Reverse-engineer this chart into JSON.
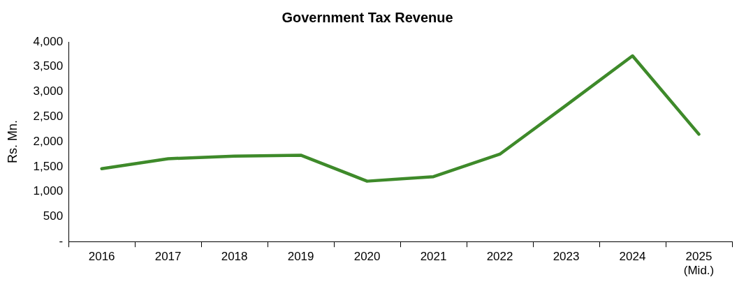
{
  "chart_data": {
    "type": "line",
    "title": "Government Tax Revenue",
    "ylabel": "Rs. Mn.",
    "categories": [
      "2016",
      "2017",
      "2018",
      "2019",
      "2020",
      "2021",
      "2022",
      "2023",
      "2024",
      "2025 (Mid.)"
    ],
    "series": [
      {
        "color": "#3e8a2a",
        "values": [
          1460,
          1660,
          1710,
          1730,
          1210,
          1300,
          1750,
          2730,
          3720,
          2150
        ]
      }
    ],
    "ylim": [
      0,
      4000
    ],
    "yticks": [
      {
        "value": 0,
        "label": "-"
      },
      {
        "value": 500,
        "label": "500"
      },
      {
        "value": 1000,
        "label": "1,000"
      },
      {
        "value": 1500,
        "label": "1,500"
      },
      {
        "value": 2000,
        "label": "2,000"
      },
      {
        "value": 2500,
        "label": "2,500"
      },
      {
        "value": 3000,
        "label": "3,000"
      },
      {
        "value": 3500,
        "label": "3,500"
      },
      {
        "value": 4000,
        "label": "4,000"
      }
    ],
    "grid": false,
    "legend": false,
    "marker": "none",
    "line_style": "solid"
  }
}
